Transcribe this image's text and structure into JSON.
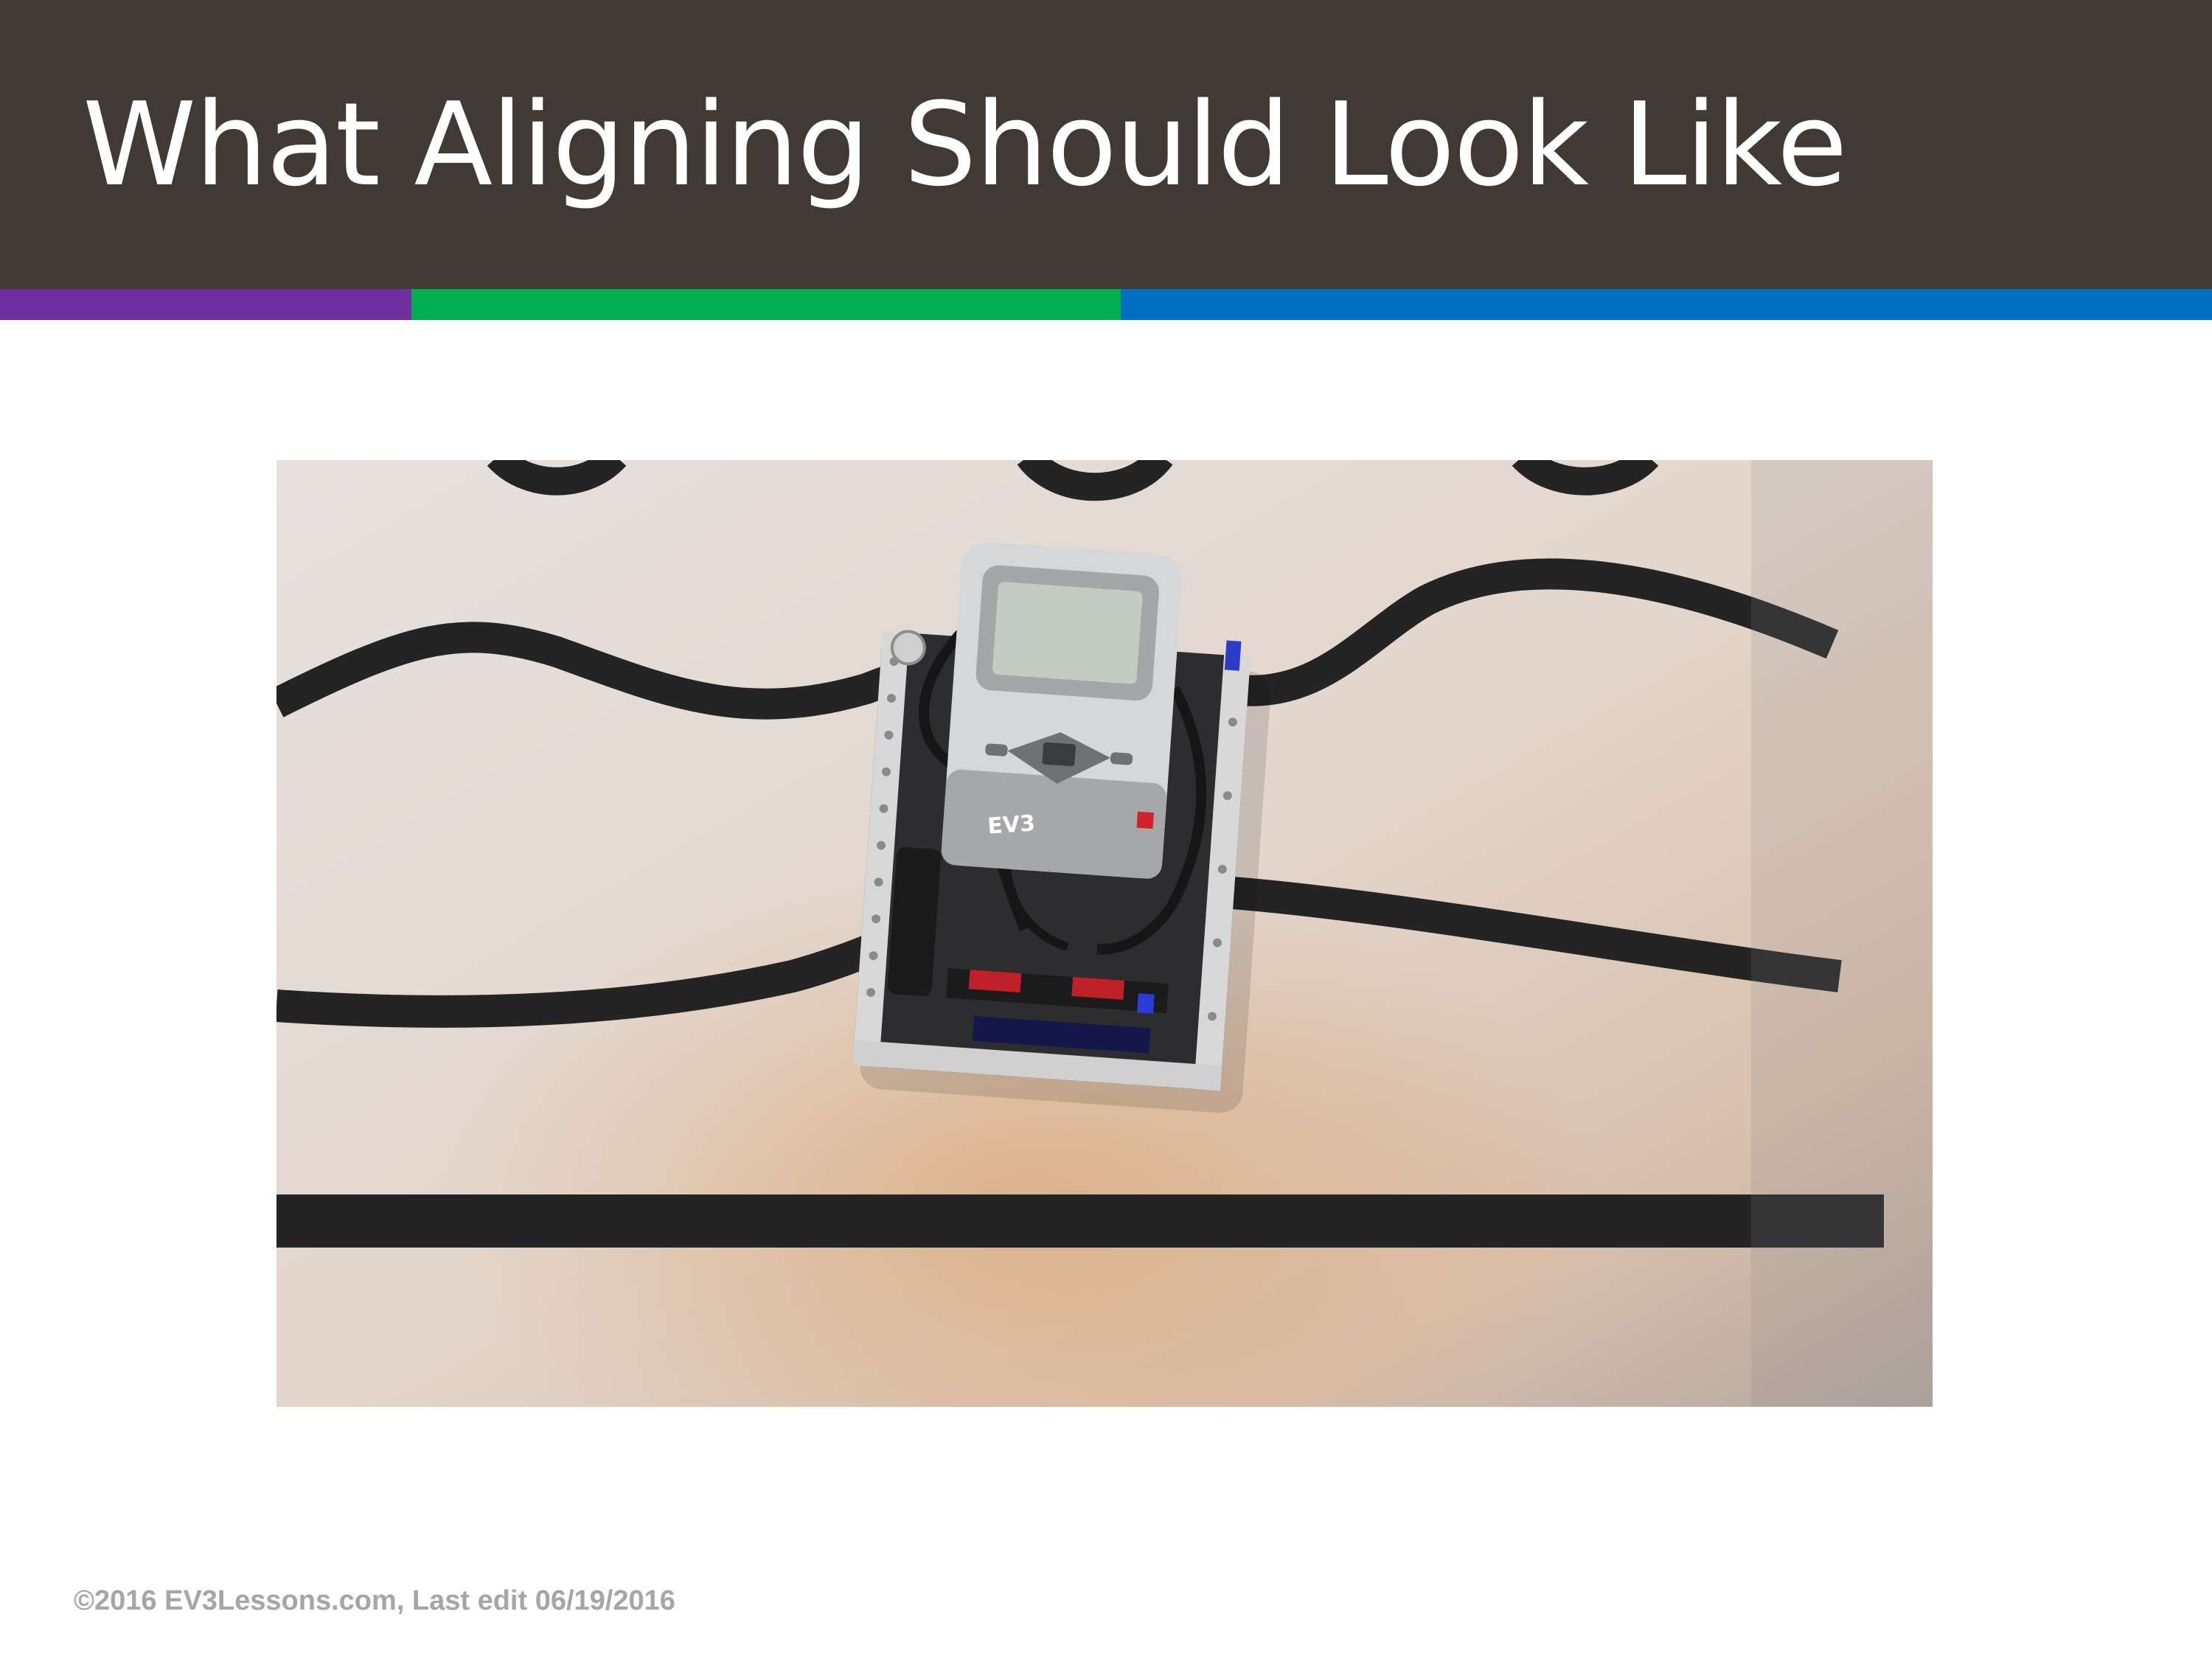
{
  "slide": {
    "title": "What Aligning Should Look Like",
    "footer": "©2016 EV3Lessons.com, Last edit 06/19/2016"
  },
  "colors": {
    "title_bar": "#403934",
    "accent_purple": "#7030a0",
    "accent_green": "#00b050",
    "accent_blue": "#0070c0",
    "footer_text": "#a6a6a6"
  },
  "photo": {
    "subject": "EV3 robot positioned on black line-following track",
    "brick_label": "EV3"
  }
}
